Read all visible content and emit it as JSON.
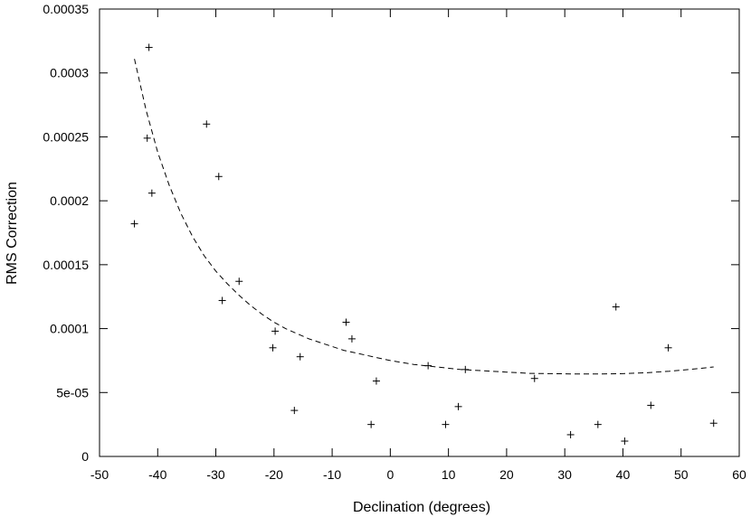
{
  "chart_data": {
    "type": "scatter",
    "title": "",
    "xlabel": "Declination (degrees)",
    "ylabel": "RMS Correction",
    "xlim": [
      -50,
      60
    ],
    "ylim": [
      0,
      0.00035
    ],
    "x_ticks": [
      "-50",
      "-40",
      "-30",
      "-20",
      "-10",
      "0",
      "10",
      "20",
      "30",
      "40",
      "50",
      "60"
    ],
    "y_ticks": [
      "0",
      "5e-05",
      "0.0001",
      "0.00015",
      "0.0002",
      "0.00025",
      "0.0003",
      "0.00035"
    ],
    "grid": false,
    "legend": "none",
    "series": [
      {
        "type": "scatter",
        "marker": "plus",
        "points": [
          [
            -44.0,
            0.000182
          ],
          [
            -41.5,
            0.00032
          ],
          [
            -41.8,
            0.000249
          ],
          [
            -41.0,
            0.000206
          ],
          [
            -31.6,
            0.00026
          ],
          [
            -29.5,
            0.000219
          ],
          [
            -28.9,
            0.000122
          ],
          [
            -26.0,
            0.000137
          ],
          [
            -20.2,
            8.5e-05
          ],
          [
            -19.8,
            9.8e-05
          ],
          [
            -16.5,
            3.6e-05
          ],
          [
            -15.5,
            7.8e-05
          ],
          [
            -7.6,
            0.000105
          ],
          [
            -6.6,
            9.2e-05
          ],
          [
            -3.3,
            2.5e-05
          ],
          [
            -2.4,
            5.9e-05
          ],
          [
            6.5,
            7.1e-05
          ],
          [
            9.5,
            2.5e-05
          ],
          [
            11.7,
            3.9e-05
          ],
          [
            12.9,
            6.8e-05
          ],
          [
            24.8,
            6.1e-05
          ],
          [
            31.0,
            1.7e-05
          ],
          [
            35.7,
            2.5e-05
          ],
          [
            38.8,
            0.000117
          ],
          [
            40.3,
            1.2e-05
          ],
          [
            44.8,
            4e-05
          ],
          [
            47.8,
            8.5e-05
          ],
          [
            55.6,
            2.6e-05
          ]
        ]
      },
      {
        "type": "line",
        "style": "dashed",
        "x": [
          -44,
          -42,
          -40,
          -38,
          -36,
          -34,
          -32,
          -30,
          -28,
          -26,
          -24,
          -22,
          -20,
          -18,
          -16,
          -14,
          -12,
          -10,
          -8,
          -6,
          -4,
          -2,
          0,
          4,
          8,
          12,
          16,
          20,
          24,
          28,
          32,
          36,
          40,
          44,
          48,
          52,
          55.6
        ],
        "y": [
          0.000311,
          0.000271,
          0.000238,
          0.000212,
          0.00019,
          0.000172,
          0.000157,
          0.000145,
          0.000135,
          0.000126,
          0.000118,
          0.000111,
          0.000105,
          0.0001,
          9.6e-05,
          9.2e-05,
          8.9e-05,
          8.6e-05,
          8.3e-05,
          8.1e-05,
          7.9e-05,
          7.7e-05,
          7.5e-05,
          7.2e-05,
          7e-05,
          6.8e-05,
          6.7e-05,
          6.6e-05,
          6.5e-05,
          6.48e-05,
          6.45e-05,
          6.45e-05,
          6.48e-05,
          6.55e-05,
          6.67e-05,
          6.83e-05,
          7e-05
        ]
      }
    ]
  }
}
